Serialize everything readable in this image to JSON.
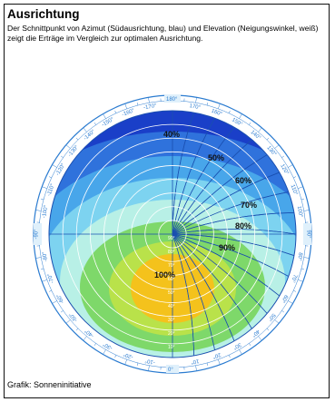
{
  "title": "Ausrichtung",
  "description": "Der Schnittpunkt von Azimut (Südausrichtung, blau) und Elevation (Neigungswinkel, weiß) zeigt die Erträge im Vergleich zur optimalen Ausrichtung.",
  "caption": "Grafik: Sonneninitiative",
  "yield_labels": [
    "40%",
    "50%",
    "60%",
    "70%",
    "80%",
    "90%",
    "100%"
  ],
  "elevation_labels": [
    "10°",
    "20°",
    "30°",
    "40°",
    "50°",
    "60°",
    "70°",
    "80°",
    "90°"
  ],
  "azimuth_labels": {
    "top": "180°",
    "bottom": "0°",
    "left": "-90°",
    "right": "90°",
    "left_side": [
      "-170°",
      "-160°",
      "-150°",
      "-140°",
      "-130°",
      "-120°",
      "-110°",
      "-100°",
      "-80°",
      "-70°",
      "-60°",
      "-50°",
      "-40°",
      "-30°",
      "-20°",
      "-10°"
    ],
    "right_side": [
      "170°",
      "160°",
      "150°",
      "140°",
      "130°",
      "120°",
      "110°",
      "100°",
      "80°",
      "70°",
      "60°",
      "50°",
      "40°",
      "30°",
      "20°",
      "10°"
    ]
  },
  "colors": {
    "band_40": "#1a3fc8",
    "band_50": "#2f72dc",
    "band_60": "#48a6ea",
    "band_70": "#7dd3f0",
    "band_80": "#b8f0e6",
    "band_90": "#7ed86a",
    "band_95": "#b9e24a",
    "band_100": "#f4c21c",
    "azimuth_lines": "#1a4fb0",
    "elevation_lines": "#ffffff",
    "dial_text": "#2a7bd0"
  }
}
